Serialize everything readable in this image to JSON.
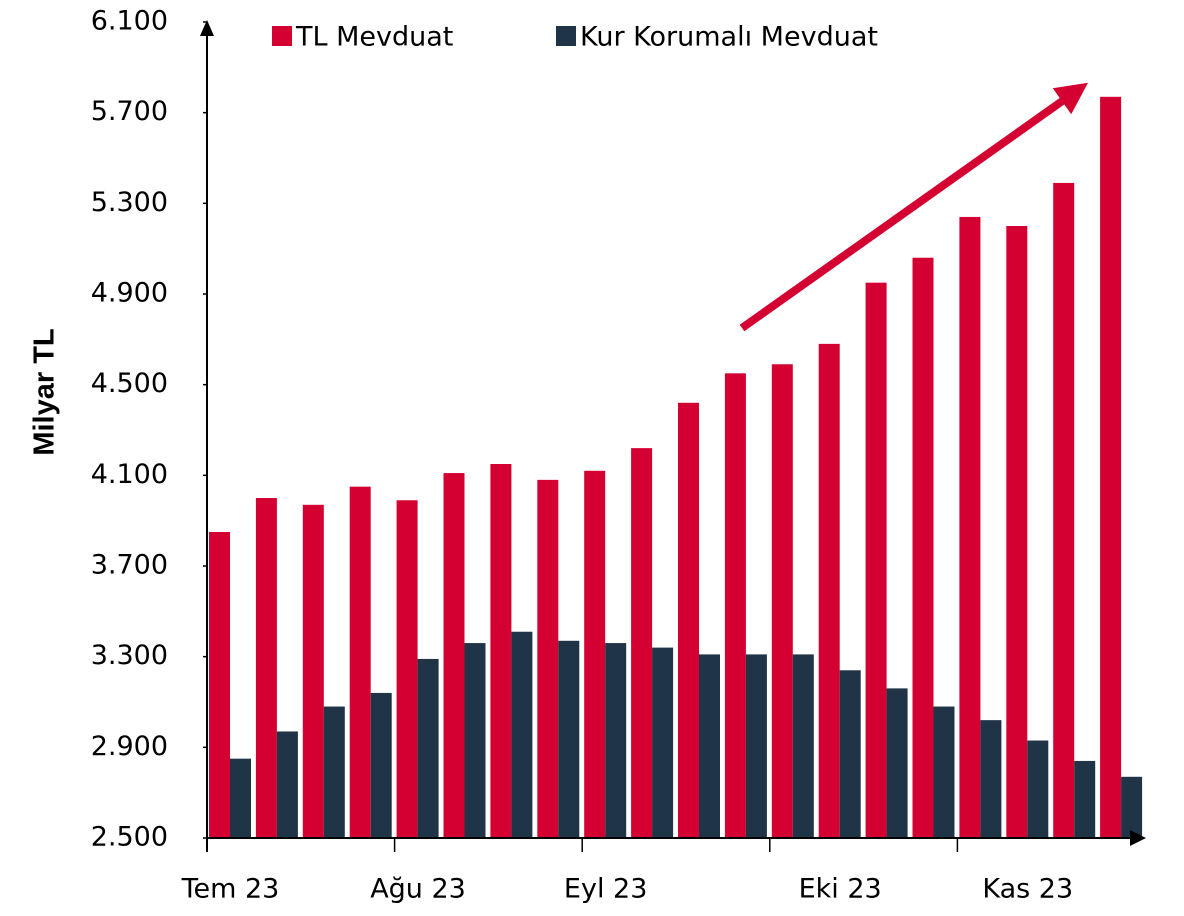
{
  "chart_data": {
    "type": "bar",
    "y_label": "Milyar TL",
    "categories": [
      "Tem 23",
      null,
      null,
      null,
      "Ağu 23",
      null,
      null,
      null,
      "Eyl 23",
      null,
      null,
      null,
      null,
      "Eki 23",
      null,
      null,
      null,
      "Kas 23",
      null,
      null
    ],
    "series": [
      {
        "name": "TL Mevduat",
        "color": "#d50032",
        "values": [
          3850,
          4000,
          3970,
          4050,
          3990,
          4110,
          4150,
          4080,
          4120,
          4220,
          4420,
          4550,
          4590,
          4680,
          4950,
          5060,
          5240,
          5200,
          5390,
          5770
        ]
      },
      {
        "name": "Kur Korumalı Mevduat",
        "color": "#1f3447",
        "values": [
          2850,
          2970,
          3080,
          3140,
          3290,
          3360,
          3410,
          3370,
          3360,
          3340,
          3310,
          3310,
          3310,
          3240,
          3160,
          3080,
          3020,
          2930,
          2840,
          2770
        ]
      }
    ],
    "ylim": [
      2500,
      6100
    ],
    "yticks": [
      {
        "value": 2500,
        "label": "2.500"
      },
      {
        "value": 2900,
        "label": "2.900"
      },
      {
        "value": 3300,
        "label": "3.300"
      },
      {
        "value": 3700,
        "label": "3.700"
      },
      {
        "value": 4100,
        "label": "4.100"
      },
      {
        "value": 4500,
        "label": "4.500"
      },
      {
        "value": 4900,
        "label": "4.900"
      },
      {
        "value": 5300,
        "label": "5.300"
      },
      {
        "value": 5700,
        "label": "5.700"
      },
      {
        "value": 6100,
        "label": "6.100"
      }
    ],
    "grid": false
  }
}
